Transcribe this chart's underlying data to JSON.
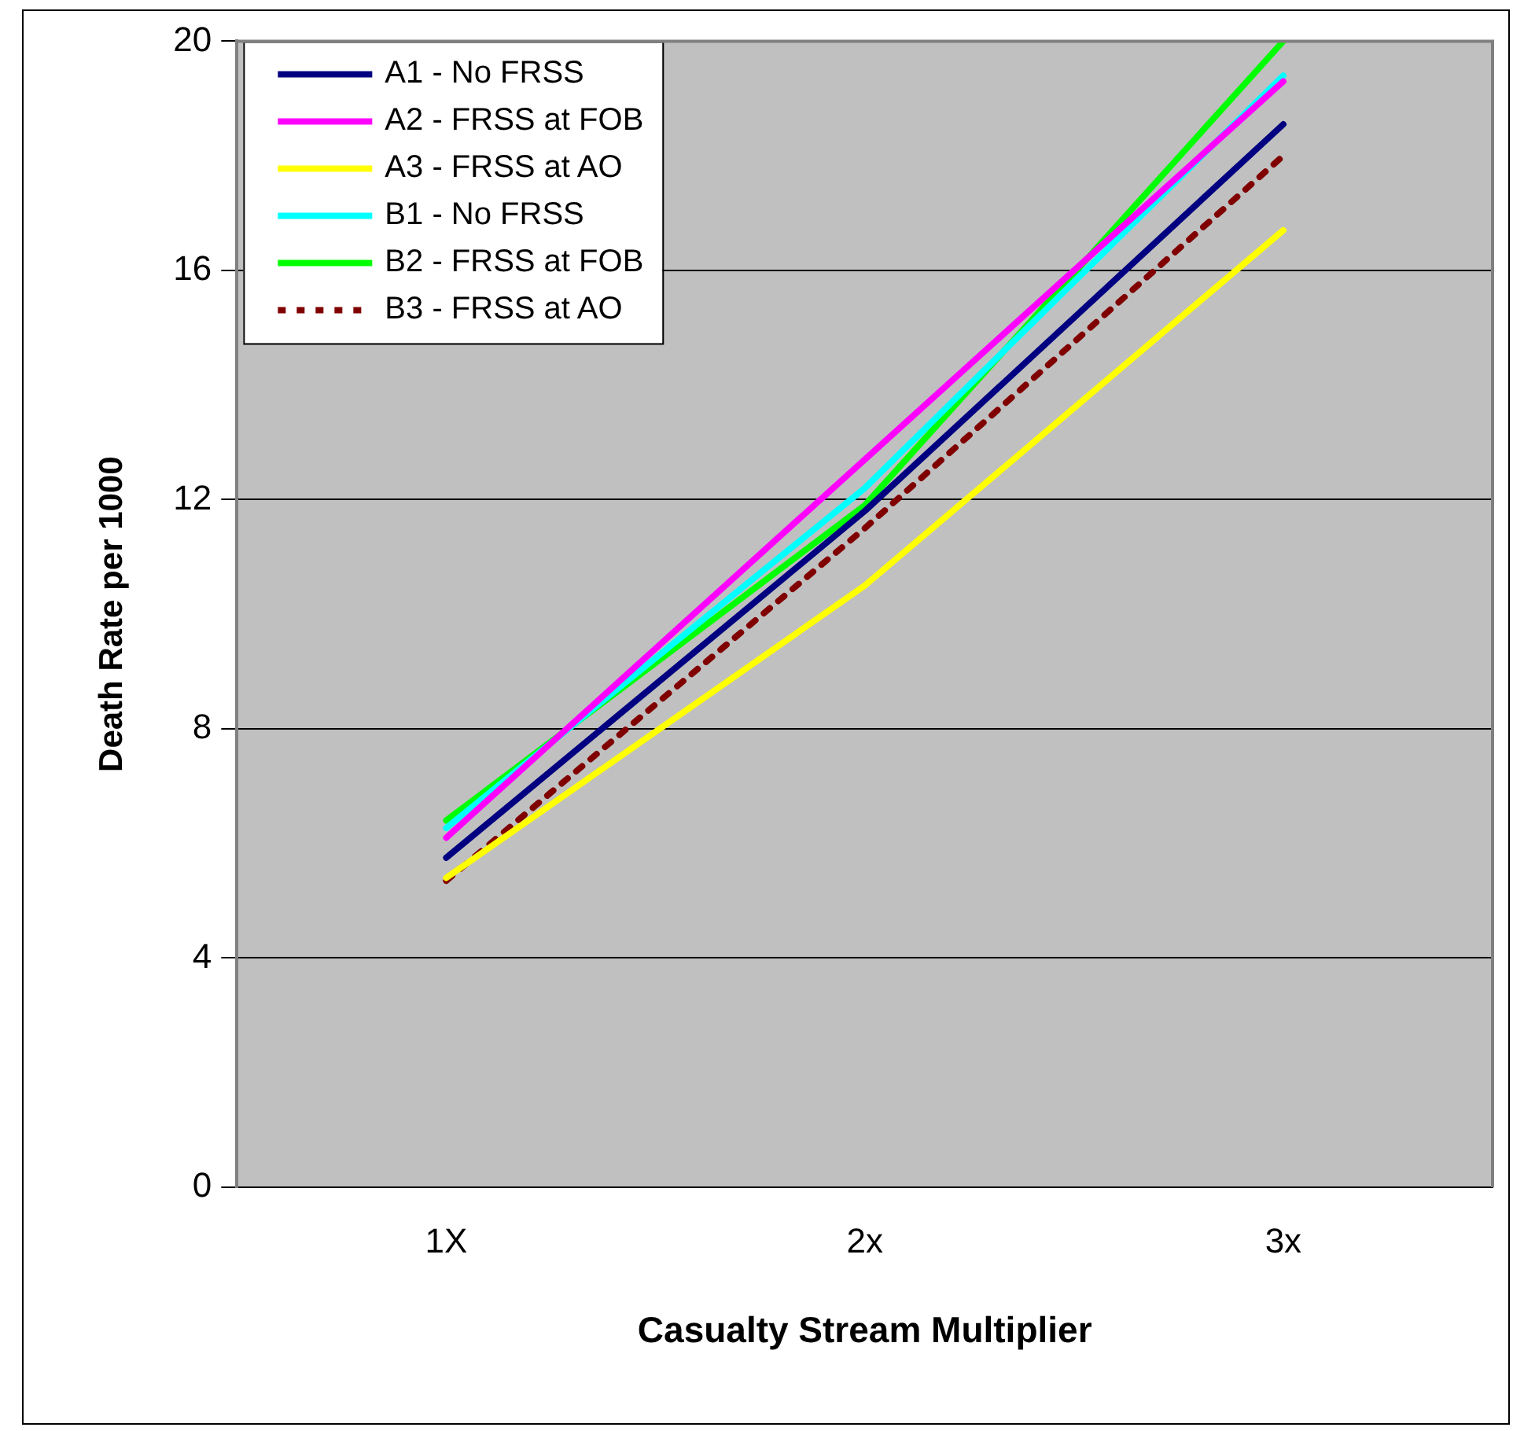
{
  "chart_data": {
    "type": "line",
    "xlabel": "Casualty Stream Multiplier",
    "ylabel": "Death Rate per 1000",
    "categories": [
      "1X",
      "2x",
      "3x"
    ],
    "series": [
      {
        "name": "A1 - No FRSS",
        "color": "#000080",
        "values": [
          5.75,
          11.8,
          18.55
        ]
      },
      {
        "name": "A2 - FRSS at FOB",
        "color": "#ff00ff",
        "values": [
          6.1,
          12.7,
          19.3
        ]
      },
      {
        "name": "A3 - FRSS at AO",
        "color": "#ffff00",
        "values": [
          5.4,
          10.5,
          16.7
        ]
      },
      {
        "name": "B1 - No FRSS",
        "color": "#00ffff",
        "values": [
          6.27,
          12.2,
          19.4
        ]
      },
      {
        "name": "B2 - FRSS at FOB",
        "color": "#00ff00",
        "values": [
          6.4,
          11.9,
          20
        ]
      },
      {
        "name": "B3 - FRSS at AO",
        "color": "#800000",
        "values": [
          5.35,
          11.5,
          18
        ],
        "line_style": "dashed"
      }
    ],
    "ylim": [
      0,
      20
    ],
    "yticks": [
      0,
      4,
      8,
      12,
      16,
      20
    ],
    "grid": "y",
    "legend": "top left",
    "marker": "none"
  }
}
